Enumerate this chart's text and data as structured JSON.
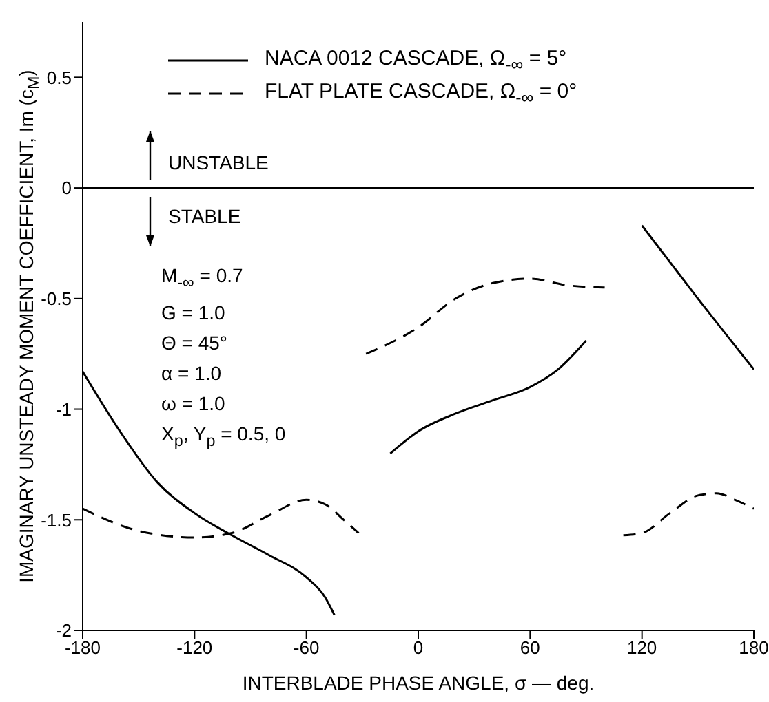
{
  "chart_data": {
    "type": "line",
    "xlabel": "INTERBLADE PHASE ANGLE, σ — deg.",
    "ylabel": "IMAGINARY UNSTEADY MOMENT COEFFICIENT, Im (c$_{M}$)",
    "xlim": [
      -180,
      180
    ],
    "xticks": [
      -180,
      -120,
      -60,
      0,
      60,
      120,
      180
    ],
    "ylim": [
      -2,
      0.75
    ],
    "yticks": [
      -2,
      -1.5,
      -1,
      -0.5,
      0,
      0.5
    ],
    "grid": false,
    "legend": "top",
    "marker": "none",
    "ref_lines": [
      {
        "axis": "y",
        "value": 0,
        "color": "#000000"
      }
    ],
    "annotations": [
      "UNSTABLE",
      "STABLE",
      "M$_{-∞}$ = 0.7",
      "G = 1.0",
      "Θ = 45°",
      "α = 1.0",
      "ω = 1.0",
      "X$_{p}$, Y$_{p}$ = 0.5, 0"
    ],
    "series": [
      {
        "name": "NACA 0012 CASCADE, Ω$_{-∞}$ = 5°",
        "color": "#000000",
        "line_style": "solid",
        "x": [
          -180,
          -160,
          -140,
          -120,
          -100,
          -80,
          -60,
          -50,
          -45,
          -30,
          -15,
          0,
          20,
          40,
          60,
          75,
          90,
          105,
          120,
          150,
          180
        ],
        "values": [
          -0.83,
          -1.1,
          -1.33,
          -1.47,
          -1.57,
          -1.66,
          -1.76,
          -1.85,
          -1.93,
          null,
          -1.2,
          -1.1,
          -1.02,
          -0.96,
          -0.9,
          -0.82,
          -0.69,
          null,
          -0.17,
          -0.5,
          -0.82
        ]
      },
      {
        "name": "FLAT PLATE CASCADE, Ω$_{-∞}$ = 0°",
        "color": "#000000",
        "line_style": "dashed",
        "x": [
          -180,
          -150,
          -120,
          -100,
          -80,
          -60,
          -50,
          -40,
          -32,
          -30,
          -28,
          0,
          20,
          40,
          60,
          80,
          100,
          105,
          110,
          120,
          135,
          150,
          160,
          170,
          180
        ],
        "values": [
          -1.45,
          -1.55,
          -1.58,
          -1.56,
          -1.48,
          -1.41,
          -1.43,
          -1.5,
          -1.56,
          null,
          -0.75,
          -0.63,
          -0.5,
          -0.43,
          -0.41,
          -0.44,
          -0.45,
          null,
          -1.57,
          -1.56,
          -1.47,
          -1.39,
          -1.38,
          -1.41,
          -1.45
        ]
      }
    ]
  }
}
